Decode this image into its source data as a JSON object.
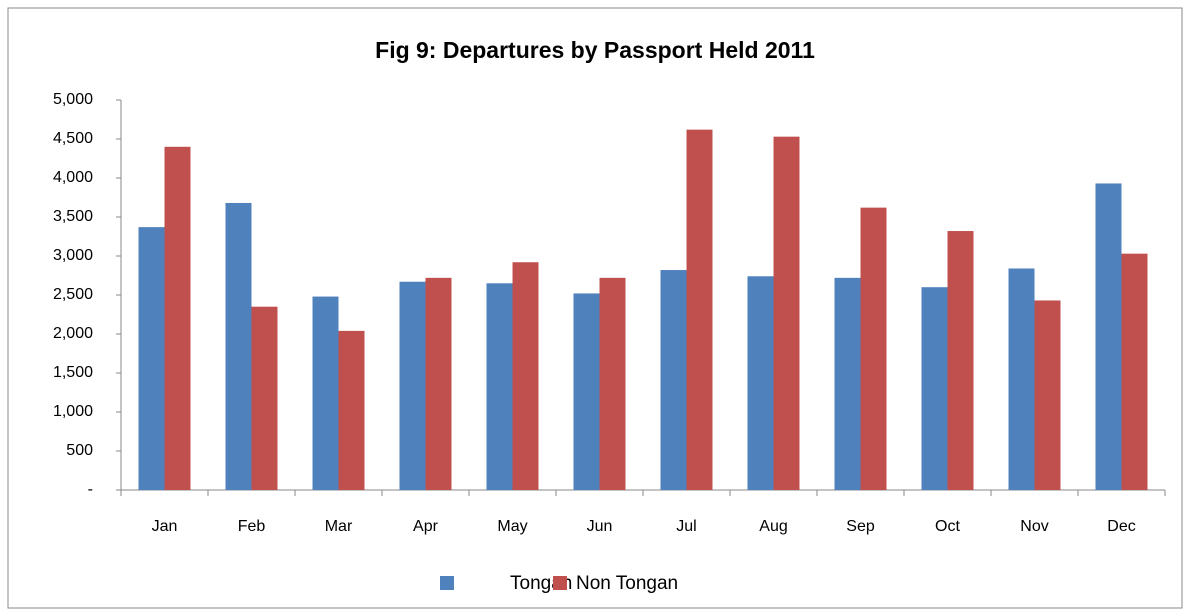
{
  "chart_data": {
    "type": "bar",
    "title": "Fig 9:  Departures by Passport Held 2011",
    "categories": [
      "Jan",
      "Feb",
      "Mar",
      "Apr",
      "May",
      "Jun",
      "Jul",
      "Aug",
      "Sep",
      "Oct",
      "Nov",
      "Dec"
    ],
    "series": [
      {
        "name": "Tongan",
        "color": "#4f81bd",
        "values": [
          3370,
          3680,
          2480,
          2670,
          2650,
          2520,
          2820,
          2740,
          2720,
          2600,
          2840,
          3930
        ]
      },
      {
        "name": "Non Tongan",
        "color": "#c0504d",
        "values": [
          4400,
          2350,
          2040,
          2720,
          2920,
          2720,
          4620,
          4530,
          3620,
          3320,
          2430,
          3030
        ]
      }
    ],
    "ylim": [
      0,
      5000
    ],
    "yticks": [
      {
        "value": 0,
        "label": "-"
      },
      500,
      {
        "value": 1000,
        "label": "1,000"
      },
      {
        "value": 1500,
        "label": "1,500"
      },
      {
        "value": 2000,
        "label": "2,000"
      },
      {
        "value": 2500,
        "label": "2,500"
      },
      {
        "value": 3000,
        "label": "3,000"
      },
      {
        "value": 3500,
        "label": "3,500"
      },
      {
        "value": 4000,
        "label": "4,000"
      },
      {
        "value": 4500,
        "label": "4,500"
      },
      {
        "value": 5000,
        "label": "5,000"
      }
    ],
    "legend": "bottom"
  }
}
